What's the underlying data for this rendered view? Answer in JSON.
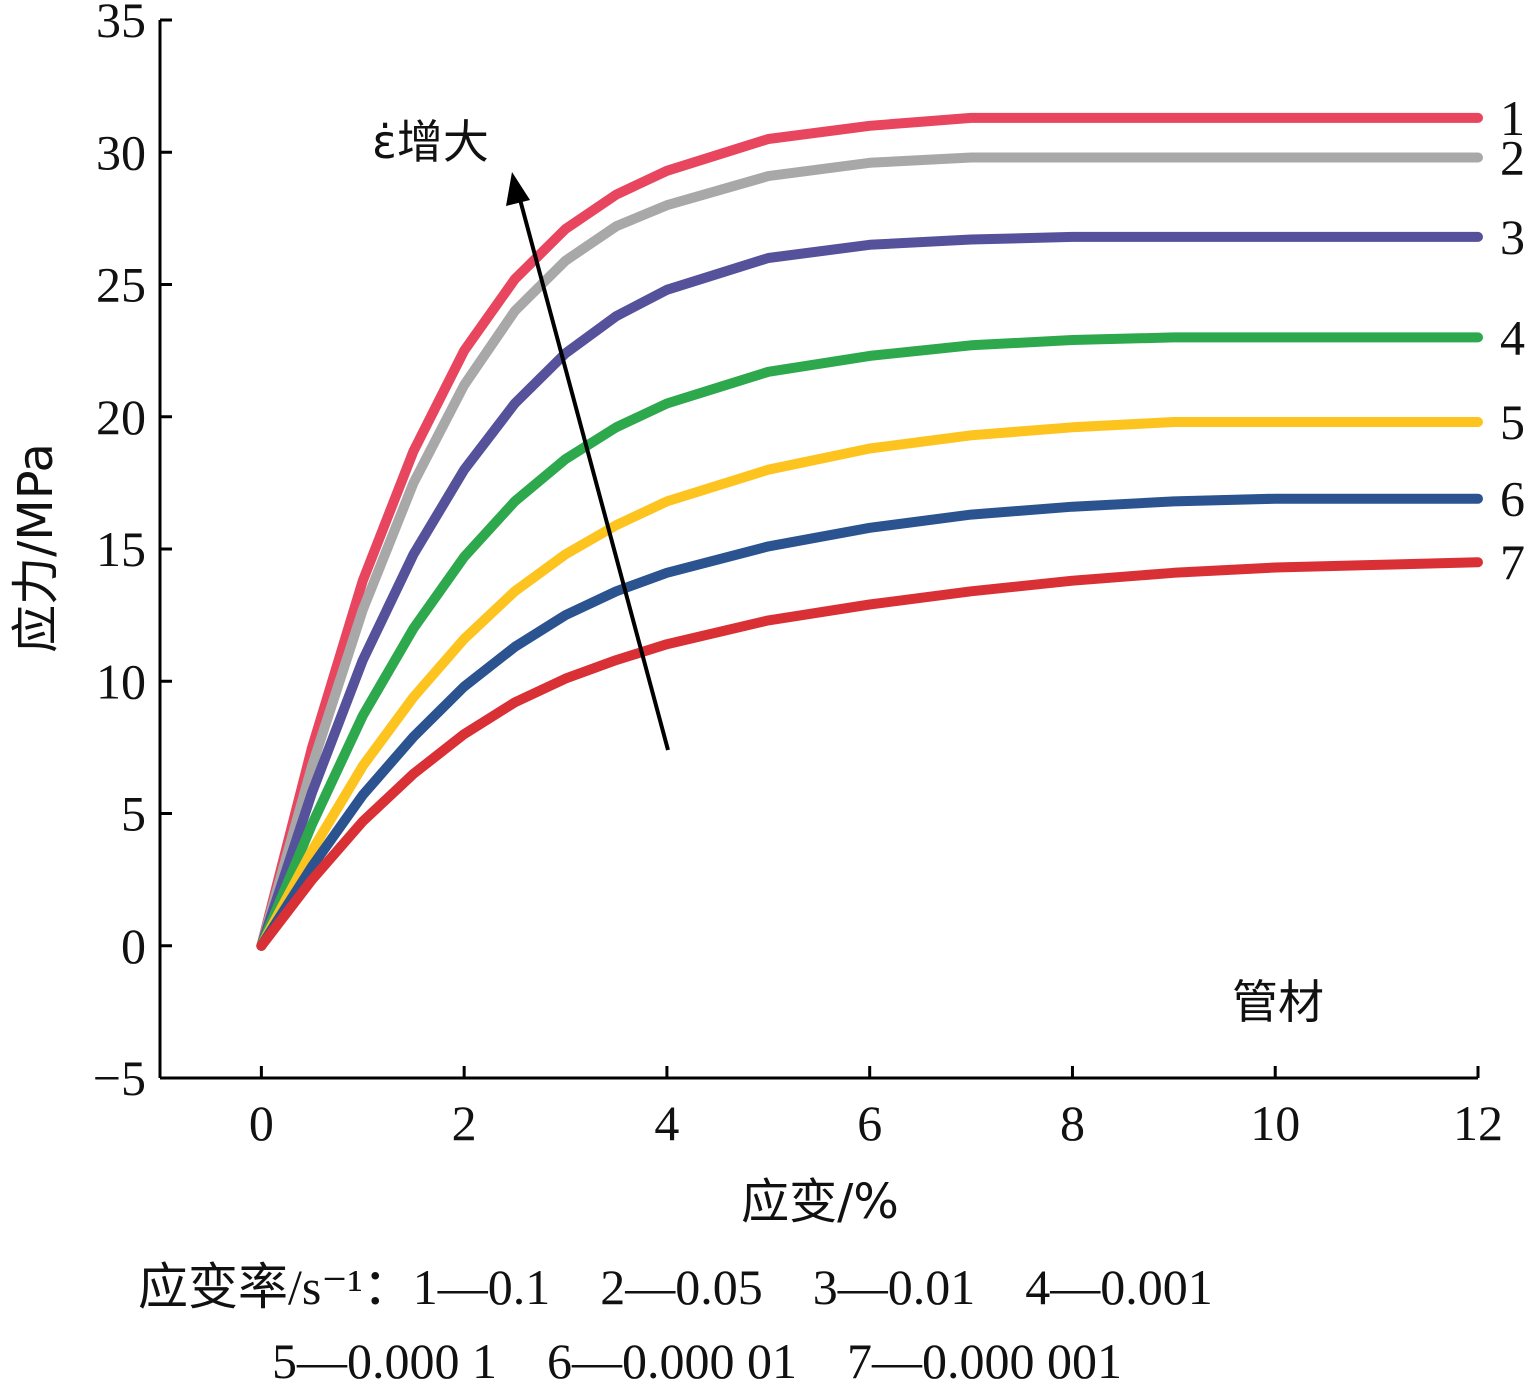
{
  "chart_data": {
    "type": "line",
    "xlabel": "应变/%",
    "ylabel": "应力/MPa",
    "xlim": [
      -1,
      12
    ],
    "ylim": [
      -5,
      35
    ],
    "xticks": [
      0,
      2,
      4,
      6,
      8,
      10,
      12
    ],
    "yticks": [
      -5,
      0,
      5,
      10,
      15,
      20,
      25,
      30,
      35
    ],
    "xtick_labels": [
      "0",
      "2",
      "4",
      "6",
      "8",
      "10",
      "12"
    ],
    "ytick_labels": [
      "−5",
      "0",
      "5",
      "10",
      "15",
      "20",
      "25",
      "30",
      "35"
    ],
    "annotations": {
      "arrow_label": "ε̇增大",
      "material": "管材"
    },
    "series": [
      {
        "name": "1",
        "color": "#e8455f",
        "x": [
          0,
          0.5,
          1,
          1.5,
          2,
          2.5,
          3,
          3.5,
          4,
          5,
          6,
          7,
          8,
          9,
          10,
          11,
          12
        ],
        "y": [
          0,
          7.5,
          13.8,
          18.7,
          22.5,
          25.2,
          27.1,
          28.4,
          29.3,
          30.5,
          31.0,
          31.3,
          31.3,
          31.3,
          31.3,
          31.3,
          31.3
        ]
      },
      {
        "name": "2",
        "color": "#a8a8a8",
        "x": [
          0,
          0.5,
          1,
          1.5,
          2,
          2.5,
          3,
          3.5,
          4,
          5,
          6,
          7,
          8,
          9,
          10,
          11,
          12
        ],
        "y": [
          0,
          6.8,
          12.7,
          17.5,
          21.2,
          24.0,
          25.9,
          27.2,
          28.0,
          29.1,
          29.6,
          29.8,
          29.8,
          29.8,
          29.8,
          29.8,
          29.8
        ]
      },
      {
        "name": "3",
        "color": "#55519a",
        "x": [
          0,
          0.5,
          1,
          1.5,
          2,
          2.5,
          3,
          3.5,
          4,
          5,
          6,
          7,
          8,
          9,
          10,
          11,
          12
        ],
        "y": [
          0,
          5.8,
          10.8,
          14.8,
          18.0,
          20.5,
          22.4,
          23.8,
          24.8,
          26.0,
          26.5,
          26.7,
          26.8,
          26.8,
          26.8,
          26.8,
          26.8
        ]
      },
      {
        "name": "4",
        "color": "#2ea84c",
        "x": [
          0,
          0.5,
          1,
          1.5,
          2,
          2.5,
          3,
          3.5,
          4,
          5,
          6,
          7,
          8,
          9,
          10,
          11,
          12
        ],
        "y": [
          0,
          4.6,
          8.7,
          12.0,
          14.7,
          16.8,
          18.4,
          19.6,
          20.5,
          21.7,
          22.3,
          22.7,
          22.9,
          23.0,
          23.0,
          23.0,
          23.0
        ]
      },
      {
        "name": "5",
        "color": "#fdc420",
        "x": [
          0,
          0.5,
          1,
          1.5,
          2,
          2.5,
          3,
          3.5,
          4,
          5,
          6,
          7,
          8,
          9,
          10,
          11,
          12
        ],
        "y": [
          0,
          3.6,
          6.8,
          9.4,
          11.6,
          13.4,
          14.8,
          15.9,
          16.8,
          18.0,
          18.8,
          19.3,
          19.6,
          19.8,
          19.8,
          19.8,
          19.8
        ]
      },
      {
        "name": "6",
        "color": "#2b5390",
        "x": [
          0,
          0.5,
          1,
          1.5,
          2,
          2.5,
          3,
          3.5,
          4,
          5,
          6,
          7,
          8,
          9,
          10,
          11,
          12
        ],
        "y": [
          0,
          3.0,
          5.7,
          7.9,
          9.8,
          11.3,
          12.5,
          13.4,
          14.1,
          15.1,
          15.8,
          16.3,
          16.6,
          16.8,
          16.9,
          16.9,
          16.9
        ]
      },
      {
        "name": "7",
        "color": "#d93035",
        "x": [
          0,
          0.5,
          1,
          1.5,
          2,
          2.5,
          3,
          3.5,
          4,
          5,
          6,
          7,
          8,
          9,
          10,
          11,
          12
        ],
        "y": [
          0,
          2.5,
          4.7,
          6.5,
          8.0,
          9.2,
          10.1,
          10.8,
          11.4,
          12.3,
          12.9,
          13.4,
          13.8,
          14.1,
          14.3,
          14.4,
          14.5
        ]
      }
    ],
    "legend": {
      "line1": "应变率/s⁻¹：1—0.1　2—0.05　3—0.01　4—0.001",
      "line2": "5—0.000 1　6—0.000 01　7—0.000 001"
    }
  }
}
